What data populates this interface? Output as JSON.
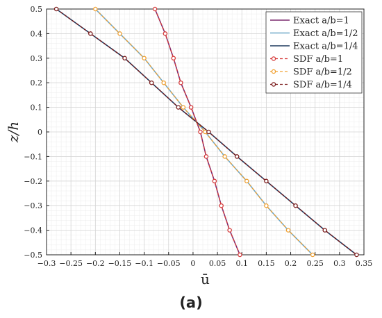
{
  "caption": "(a)",
  "chart_data": {
    "type": "line",
    "xlabel": "ū",
    "ylabel": "z/h",
    "xlim": [
      -0.3,
      0.35
    ],
    "ylim": [
      -0.5,
      0.5
    ],
    "xticks": [
      "−0.3",
      "−0.25",
      "−0.2",
      "−0.15",
      "−0.1",
      "−0.05",
      "0",
      "0.05",
      "0.1",
      "0.15",
      "0.2",
      "0.25",
      "0.3",
      "0.35"
    ],
    "yticks": [
      "−0.5",
      "−0.4",
      "−0.3",
      "−0.2",
      "−0.1",
      "0",
      "0.1",
      "0.2",
      "0.3",
      "0.4",
      "0.5"
    ],
    "grid": true,
    "legend_position": "top-right",
    "z": [
      0.5,
      0.4,
      0.3,
      0.2,
      0.1,
      0.0,
      -0.1,
      -0.2,
      -0.3,
      -0.4,
      -0.5
    ],
    "series": [
      {
        "name": "Exact a/b=1",
        "style": "solid",
        "color": "#7b2a6e",
        "x": [
          -0.078,
          -0.057,
          -0.04,
          -0.025,
          -0.004,
          0.015,
          0.027,
          0.044,
          0.058,
          0.075,
          0.096
        ]
      },
      {
        "name": "Exact a/b=1/2",
        "style": "solid",
        "color": "#6fa8c8",
        "x": [
          -0.2,
          -0.15,
          -0.1,
          -0.06,
          -0.02,
          0.025,
          0.065,
          0.11,
          0.15,
          0.195,
          0.245
        ]
      },
      {
        "name": "Exact a/b=1/4",
        "style": "solid",
        "color": "#1f3a5f",
        "x": [
          -0.28,
          -0.21,
          -0.14,
          -0.085,
          -0.03,
          0.032,
          0.09,
          0.15,
          0.21,
          0.27,
          0.335
        ]
      },
      {
        "name": "SDF a/b=1",
        "style": "dashed",
        "color": "#d63a3a",
        "x": [
          -0.078,
          -0.057,
          -0.04,
          -0.025,
          -0.004,
          0.015,
          0.027,
          0.044,
          0.058,
          0.075,
          0.096
        ]
      },
      {
        "name": "SDF a/b=1/2",
        "style": "dashed",
        "color": "#f0a030",
        "x": [
          -0.2,
          -0.15,
          -0.1,
          -0.06,
          -0.02,
          0.025,
          0.065,
          0.11,
          0.15,
          0.195,
          0.245
        ]
      },
      {
        "name": "SDF a/b=1/4",
        "style": "dashed",
        "color": "#7a1a1a",
        "x": [
          -0.28,
          -0.21,
          -0.14,
          -0.085,
          -0.03,
          0.032,
          0.09,
          0.15,
          0.21,
          0.27,
          0.335
        ]
      }
    ]
  }
}
